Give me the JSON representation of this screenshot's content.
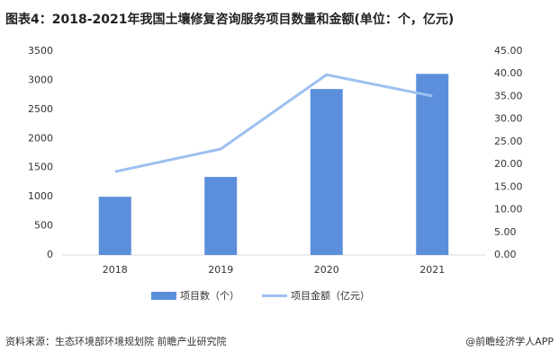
{
  "chart_data": {
    "type": "bar-line",
    "title": "图表4：2018-2021年我国土壤修复咨询服务项目数量和金额(单位：个，亿元)",
    "categories": [
      "2018",
      "2019",
      "2020",
      "2021"
    ],
    "series": [
      {
        "name": "项目数（个）",
        "type": "bar",
        "color": "#5b8fdb",
        "values": [
          1000,
          1340,
          2850,
          3110
        ]
      },
      {
        "name": "项目金额（亿元）",
        "type": "line",
        "axis": "y2",
        "color": "#9cc0f0",
        "values": [
          18.4,
          23.4,
          39.8,
          35.1
        ]
      }
    ],
    "ylim": [
      0,
      3500
    ],
    "yticks": [
      0,
      500,
      1000,
      1500,
      2000,
      2500,
      3000,
      3500
    ],
    "y2lim": [
      0,
      45
    ],
    "y2ticks": [
      {
        "value": 0,
        "label": "0.00"
      },
      {
        "value": 5,
        "label": "5.00"
      },
      {
        "value": 10,
        "label": "10.00"
      },
      {
        "value": 15,
        "label": "15.00"
      },
      {
        "value": 20,
        "label": "20.00"
      },
      {
        "value": 25,
        "label": "25.00"
      },
      {
        "value": 30,
        "label": "30.00"
      },
      {
        "value": 35,
        "label": "35.00"
      },
      {
        "value": 40,
        "label": "40.00"
      },
      {
        "value": 45,
        "label": "45.00"
      }
    ],
    "source": "资料来源：生态环境部环境规划院 前瞻产业研究院",
    "credit": "@前瞻经济学人APP"
  }
}
